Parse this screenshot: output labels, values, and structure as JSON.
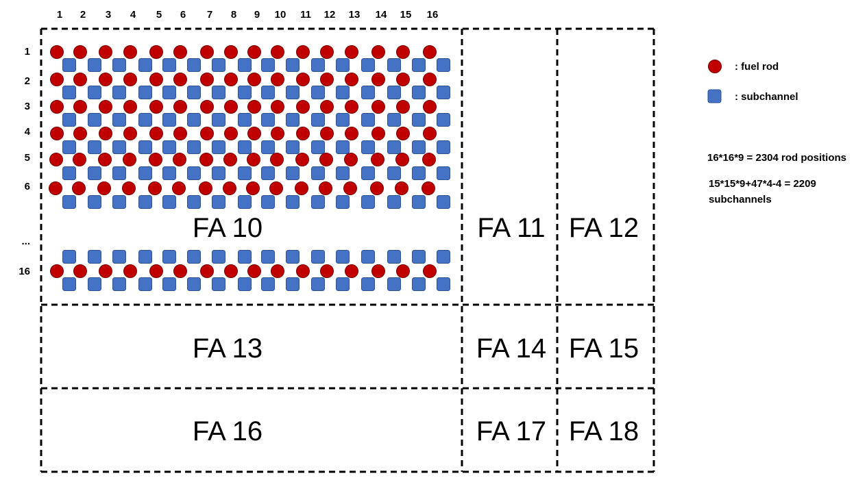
{
  "colors": {
    "fuel_rod": "#C00000",
    "fuel_rod_outline": "#7A0000",
    "subchannel": "#4472C4",
    "subchannel_outline": "#2F528F",
    "boundary": "#000000"
  },
  "column_labels": [
    "1",
    "2",
    "3",
    "4",
    "5",
    "6",
    "7",
    "8",
    "9",
    "10",
    "11",
    "12",
    "13",
    "14",
    "15",
    "16"
  ],
  "row_labels": [
    "1",
    "2",
    "3",
    "4",
    "5",
    "6",
    "...",
    "16"
  ],
  "assemblies": [
    "FA 10",
    "FA 11",
    "FA 12",
    "FA 13",
    "FA 14",
    "FA 15",
    "FA 16",
    "FA 17",
    "FA 18"
  ],
  "legend": {
    "fuel_rod_label": ": fuel rod",
    "subchannel_label": ": subchannel"
  },
  "notes": {
    "rod_positions": "16*16*9 = 2304 rod positions",
    "subchannels_line1": "15*15*9+47*4-4 = 2209",
    "subchannels_line2": "subchannels"
  }
}
